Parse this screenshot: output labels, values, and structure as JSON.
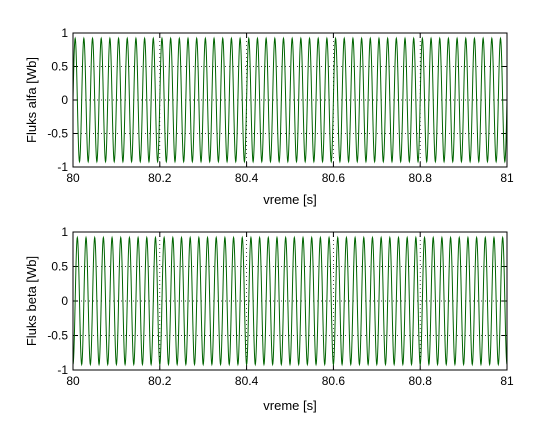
{
  "chart_data": [
    {
      "type": "line",
      "title": "",
      "xlabel": "vreme [s]",
      "ylabel": "Fluks alfa [Wb]",
      "xlim": [
        80,
        81
      ],
      "ylim": [
        -1,
        1
      ],
      "xticks": [
        80,
        80.2,
        80.4,
        80.6,
        80.8,
        81
      ],
      "xtick_labels": [
        "80",
        "80.2",
        "80.4",
        "80.6",
        "80.8",
        "81"
      ],
      "yticks": [
        -1,
        -0.5,
        0,
        0.5,
        1
      ],
      "ytick_labels": [
        "-1",
        "-0.5",
        "0",
        "0.5",
        "1"
      ],
      "grid": true,
      "series": [
        {
          "color": "#006400",
          "function": "sine",
          "amplitude": 0.92,
          "frequency_hz": 50,
          "phase_deg": 0
        }
      ]
    },
    {
      "type": "line",
      "title": "",
      "xlabel": "vreme [s]",
      "ylabel": "Fluks beta [Wb]",
      "xlim": [
        80,
        81
      ],
      "ylim": [
        -1,
        1
      ],
      "xticks": [
        80,
        80.2,
        80.4,
        80.6,
        80.8,
        81
      ],
      "xtick_labels": [
        "80",
        "80.2",
        "80.4",
        "80.6",
        "80.8",
        "81"
      ],
      "yticks": [
        -1,
        -0.5,
        0,
        0.5,
        1
      ],
      "ytick_labels": [
        "-1",
        "-0.5",
        "0",
        "0.5",
        "1"
      ],
      "grid": true,
      "series": [
        {
          "color": "#006400",
          "function": "sine",
          "amplitude": 0.92,
          "frequency_hz": 50,
          "phase_deg": -90
        }
      ]
    }
  ]
}
